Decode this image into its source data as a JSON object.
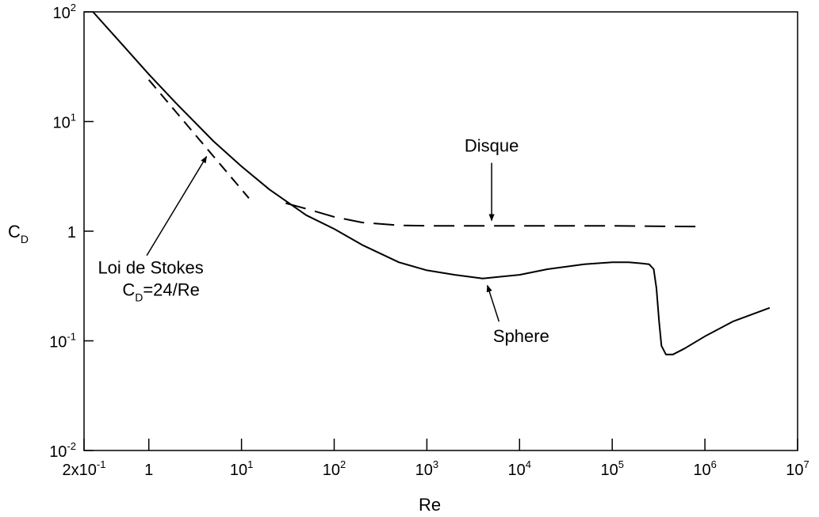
{
  "chart_data": {
    "type": "line",
    "x_scale": "log",
    "y_scale": "log",
    "xlim": [
      0.2,
      10000000
    ],
    "ylim": [
      0.01,
      100
    ],
    "xlabel": "Re",
    "ylabel": {
      "main": "C",
      "sub": "D"
    },
    "grid": false,
    "x_ticks": [
      {
        "value": 0.2,
        "base": "2x10",
        "exp": "-1"
      },
      {
        "value": 1,
        "base": "1",
        "exp": ""
      },
      {
        "value": 10,
        "base": "10",
        "exp": "1"
      },
      {
        "value": 100,
        "base": "10",
        "exp": "2"
      },
      {
        "value": 1000,
        "base": "10",
        "exp": "3"
      },
      {
        "value": 10000,
        "base": "10",
        "exp": "4"
      },
      {
        "value": 100000,
        "base": "10",
        "exp": "5"
      },
      {
        "value": 1000000,
        "base": "10",
        "exp": "6"
      },
      {
        "value": 10000000,
        "base": "10",
        "exp": "7"
      }
    ],
    "y_ticks": [
      {
        "value": 100,
        "base": "10",
        "exp": "2"
      },
      {
        "value": 10,
        "base": "10",
        "exp": "1"
      },
      {
        "value": 1,
        "base": "1",
        "exp": ""
      },
      {
        "value": 0.1,
        "base": "10",
        "exp": "-1"
      },
      {
        "value": 0.01,
        "base": "10",
        "exp": "-2"
      }
    ],
    "series": [
      {
        "name": "Sphere",
        "style": "solid",
        "x": [
          0.25,
          0.5,
          1,
          2,
          5,
          10,
          20,
          50,
          100,
          200,
          500,
          1000,
          2000,
          4000,
          10000,
          20000,
          50000,
          100000,
          150000,
          200000,
          250000,
          280000,
          300000,
          320000,
          340000,
          380000,
          450000,
          600000,
          1000000,
          2000000,
          5000000
        ],
        "y": [
          100,
          52,
          27,
          14.5,
          6.6,
          3.9,
          2.4,
          1.4,
          1.05,
          0.75,
          0.52,
          0.44,
          0.4,
          0.37,
          0.4,
          0.45,
          0.5,
          0.52,
          0.52,
          0.51,
          0.5,
          0.45,
          0.3,
          0.15,
          0.09,
          0.075,
          0.075,
          0.085,
          0.11,
          0.15,
          0.2
        ]
      },
      {
        "name": "Disque",
        "style": "dashed",
        "x": [
          30,
          50,
          100,
          200,
          500,
          1000,
          10000,
          100000,
          1000000
        ],
        "y": [
          1.8,
          1.6,
          1.35,
          1.2,
          1.13,
          1.12,
          1.12,
          1.12,
          1.1
        ]
      },
      {
        "name": "Loi de Stokes",
        "style": "dashed",
        "formula": "C_D=24/Re",
        "x": [
          1,
          2,
          5,
          12
        ],
        "y": [
          24,
          12,
          4.8,
          2
        ]
      }
    ],
    "annotations": [
      {
        "id": "disque",
        "text": "Disque",
        "arrow_from": [
          5000,
          4.2
        ],
        "arrow_to": [
          5000,
          1.25
        ]
      },
      {
        "id": "sphere",
        "text": "Sphere",
        "arrow_from": [
          6000,
          0.15
        ],
        "arrow_to": [
          4500,
          0.32
        ]
      },
      {
        "id": "stokes",
        "text": "Loi de Stokes",
        "formula_main": "C",
        "formula_sub": "D",
        "formula_rest": "=24/Re",
        "arrow_from": [
          0.95,
          0.6
        ],
        "arrow_to": [
          4.2,
          4.8
        ]
      }
    ]
  }
}
